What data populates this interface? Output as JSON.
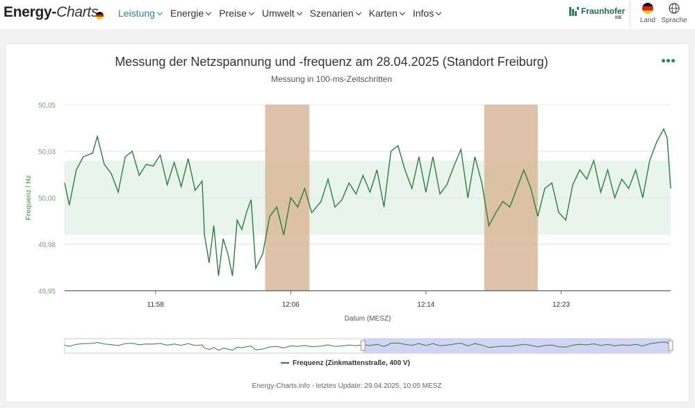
{
  "header": {
    "logo_main": "Energy-",
    "logo_sub": "Charts",
    "nav": [
      {
        "label": "Leistung",
        "active": true
      },
      {
        "label": "Energie",
        "active": false
      },
      {
        "label": "Preise",
        "active": false
      },
      {
        "label": "Umwelt",
        "active": false
      },
      {
        "label": "Szenarien",
        "active": false
      },
      {
        "label": "Karten",
        "active": false
      },
      {
        "label": "Infos",
        "active": false
      }
    ],
    "partner_name": "Fraunhofer",
    "partner_sub": "ISE",
    "land_label": "Land",
    "sprache_label": "Sprache",
    "flag_icon": "germany-flag-icon",
    "globe_icon": "globe-icon",
    "menu_icon": "more-dots-icon"
  },
  "colors": {
    "accent": "#1e8c4a",
    "line": "#2a7d3e",
    "band": "#e9f4ec",
    "highlight": "#d9b899",
    "navigator_fill": "#c6caf0",
    "axis_text": "#6fae6f"
  },
  "chart_data": {
    "type": "line",
    "title": "Messung der Netzspannung und -frequenz am 28.04.2025 (Standort Freiburg)",
    "subtitle": "Messung in 100-ms-Zeitschritten",
    "xlabel": "Datum (MESZ)",
    "ylabel": "Frequenz / Hz",
    "ylim": [
      49.95,
      50.05
    ],
    "yticks": [
      "50,05",
      "50,03",
      "50,00",
      "49,98",
      "49,95"
    ],
    "xlim_minutes": [
      55,
      81
    ],
    "xticks": [
      {
        "label": "11:58",
        "minute": 58.9
      },
      {
        "label": "12:06",
        "minute": 64.7
      },
      {
        "label": "12:14",
        "minute": 70.5
      },
      {
        "label": "12:23",
        "minute": 76.3
      }
    ],
    "band": [
      49.98,
      50.02
    ],
    "highlight_ranges_minutes": [
      [
        63.6,
        65.5
      ],
      [
        73.0,
        75.3
      ]
    ],
    "legend": "Frequenz (Zinkmattenstraße, 400 V)",
    "series": [
      {
        "name": "Frequenz (Zinkmattenstraße, 400 V)",
        "x": [
          55.0,
          55.2,
          55.5,
          55.8,
          56.2,
          56.4,
          56.7,
          57.0,
          57.3,
          57.6,
          57.9,
          58.2,
          58.5,
          58.8,
          59.1,
          59.4,
          59.7,
          60.0,
          60.3,
          60.6,
          60.9,
          61.0,
          61.2,
          61.4,
          61.6,
          61.8,
          62.0,
          62.2,
          62.4,
          62.6,
          62.8,
          63.0,
          63.2,
          63.5,
          63.8,
          64.1,
          64.4,
          64.7,
          65.0,
          65.3,
          65.6,
          66.0,
          66.3,
          66.6,
          66.9,
          67.2,
          67.5,
          67.8,
          68.1,
          68.4,
          68.7,
          69.0,
          69.3,
          69.6,
          69.9,
          70.2,
          70.5,
          70.8,
          71.1,
          71.4,
          71.7,
          72.0,
          72.3,
          72.6,
          72.9,
          73.2,
          73.5,
          73.8,
          74.1,
          74.4,
          74.7,
          75.0,
          75.3,
          75.6,
          75.9,
          76.2,
          76.5,
          76.8,
          77.1,
          77.4,
          77.7,
          78.0,
          78.3,
          78.6,
          78.9,
          79.2,
          79.5,
          79.8,
          80.1,
          80.4,
          80.7,
          80.85,
          81.0
        ],
        "y": [
          50.008,
          49.996,
          50.015,
          50.022,
          50.024,
          50.033,
          50.018,
          50.013,
          50.003,
          50.022,
          50.025,
          50.012,
          50.018,
          50.017,
          50.023,
          50.007,
          50.019,
          50.006,
          50.021,
          50.004,
          50.009,
          49.98,
          49.965,
          49.985,
          49.958,
          49.978,
          49.97,
          49.958,
          49.988,
          49.983,
          49.992,
          49.999,
          49.962,
          49.97,
          49.99,
          49.995,
          49.98,
          50.0,
          49.995,
          50.005,
          49.992,
          49.998,
          50.01,
          49.995,
          49.999,
          50.008,
          50.002,
          50.012,
          50.003,
          50.015,
          49.995,
          50.025,
          50.028,
          50.015,
          50.005,
          50.022,
          50.003,
          50.022,
          50.002,
          50.007,
          50.017,
          50.026,
          50.0,
          50.022,
          50.008,
          49.985,
          49.992,
          49.998,
          49.995,
          50.005,
          50.015,
          50.005,
          49.99,
          50.005,
          50.008,
          49.992,
          49.988,
          50.007,
          50.015,
          50.01,
          50.02,
          50.003,
          50.015,
          50.0,
          50.01,
          50.005,
          50.015,
          50.0,
          50.02,
          50.03,
          50.037,
          50.032,
          50.005
        ]
      }
    ]
  },
  "footer": "Energy-Charts.info - letztes Update: 29.04.2025, 10:05 MESZ"
}
